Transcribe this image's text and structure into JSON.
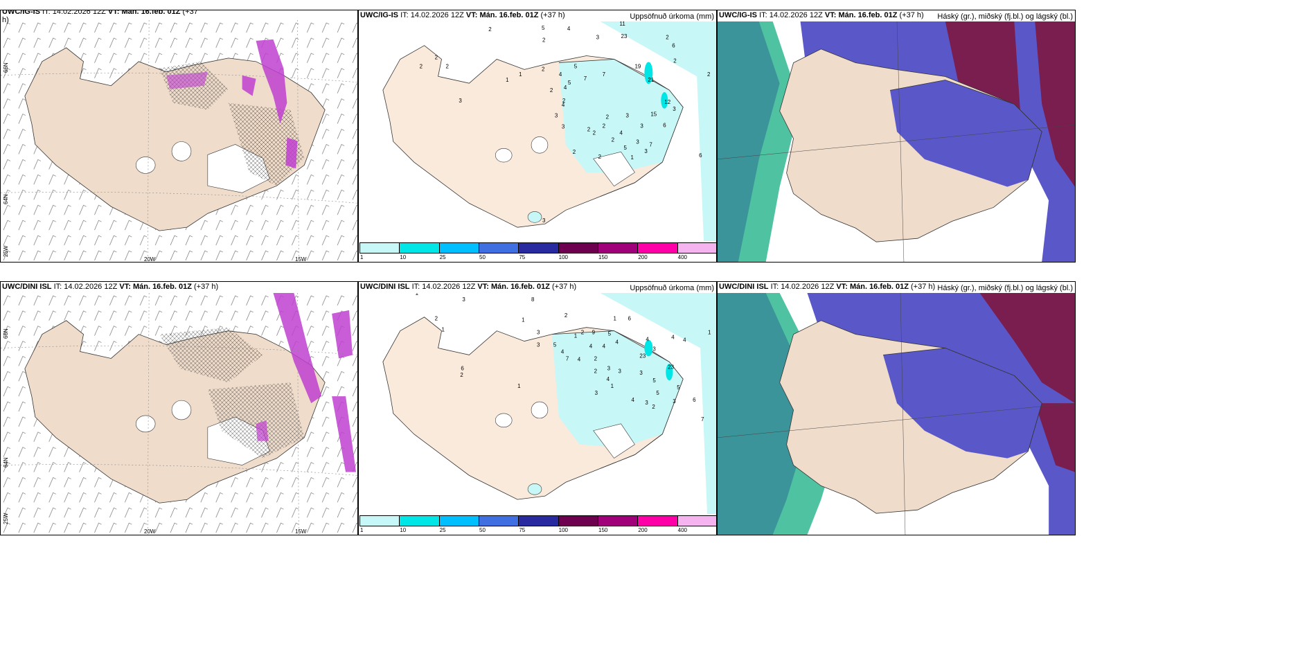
{
  "panels": {
    "p1": {
      "model": "UWC/IG-IS",
      "it_label": "IT:",
      "it": "14.02.2026 12Z",
      "vt_label": "VT:",
      "vt": "Mán. 16.feb. 01Z",
      "lead": "(+37",
      "lead2": "h)"
    },
    "p2": {
      "model": "UWC/IG-IS",
      "it_label": "IT:",
      "it": "14.02.2026 12Z",
      "vt_label": "VT:",
      "vt": "Mán. 16.feb. 01Z",
      "lead": "(+37 h)",
      "field": "Uppsöfnuð úrkoma (mm)"
    },
    "p3": {
      "model": "UWC/IG-IS",
      "it_label": "IT:",
      "it": "14.02.2026 12Z",
      "vt_label": "VT:",
      "vt": "Mán. 16.feb. 01Z",
      "lead": "(+37 h)",
      "field": "Háský (gr.), miðský (fj.bl.) og lágský (bl.)"
    },
    "p4": {
      "model": "UWC/DINI ISL",
      "it_label": "IT:",
      "it": "14.02.2026 12Z",
      "vt_label": "VT:",
      "vt": "Mán. 16.feb. 01Z",
      "lead": "(+37 h)"
    },
    "p5": {
      "model": "UWC/DINI ISL",
      "it_label": "IT:",
      "it": "14.02.2026 12Z",
      "vt_label": "VT:",
      "vt": "Mán. 16.feb. 01Z",
      "lead": "(+37 h)",
      "field": "Uppsöfnuð úrkoma (mm)"
    },
    "p6": {
      "model": "UWC/DINI ISL",
      "it_label": "IT:",
      "it": "14.02.2026 12Z",
      "vt_label": "VT:",
      "vt": "Mán. 16.feb. 01Z",
      "lead": "(+37 h)",
      "field": "Háský (gr.), miðský (fj.bl.) og lágský (bl.)"
    }
  },
  "axes": {
    "lat66": "66N",
    "lat64": "64N",
    "lon25": "25W",
    "lon20": "20W",
    "lon15": "15W"
  },
  "colorbar": {
    "labels": [
      "1",
      "10",
      "25",
      "50",
      "75",
      "100",
      "150",
      "200",
      "400"
    ],
    "colors": [
      "#c8f7f7",
      "#00e5e5",
      "#00bfff",
      "#3f6fe0",
      "#2a2aa0",
      "#6e0050",
      "#a0007a",
      "#ff00a8",
      "#f5b4f0"
    ]
  },
  "precip_top": [
    "2",
    "5",
    "4",
    "11",
    "2",
    "23",
    "2",
    "2",
    "3",
    "6",
    "2",
    "19",
    "2",
    "1",
    "2",
    "4",
    "5",
    "5",
    "7",
    "7",
    "21",
    "2",
    "4",
    "2",
    "2",
    "2",
    "1",
    "3",
    "15",
    "3",
    "4",
    "2",
    "3",
    "12",
    "2",
    "3",
    "3",
    "2",
    "3",
    "6",
    "2",
    "4",
    "2",
    "3",
    "7",
    "5",
    "2",
    "1",
    "3",
    "2",
    "6",
    "3"
  ],
  "precip_bottom": [
    "1",
    "8",
    "3",
    "2",
    "1",
    "3",
    "2",
    "1",
    "1",
    "2",
    "5",
    "1",
    "6",
    "3",
    "5",
    "4",
    "7",
    "9",
    "4",
    "2",
    "4",
    "4",
    "4",
    "4",
    "1",
    "4",
    "3",
    "4",
    "23",
    "3",
    "2",
    "3",
    "3",
    "4",
    "3",
    "1",
    "5",
    "23",
    "5",
    "1",
    "2",
    "6",
    "4",
    "3",
    "3",
    "2",
    "5",
    "6",
    "7"
  ]
}
